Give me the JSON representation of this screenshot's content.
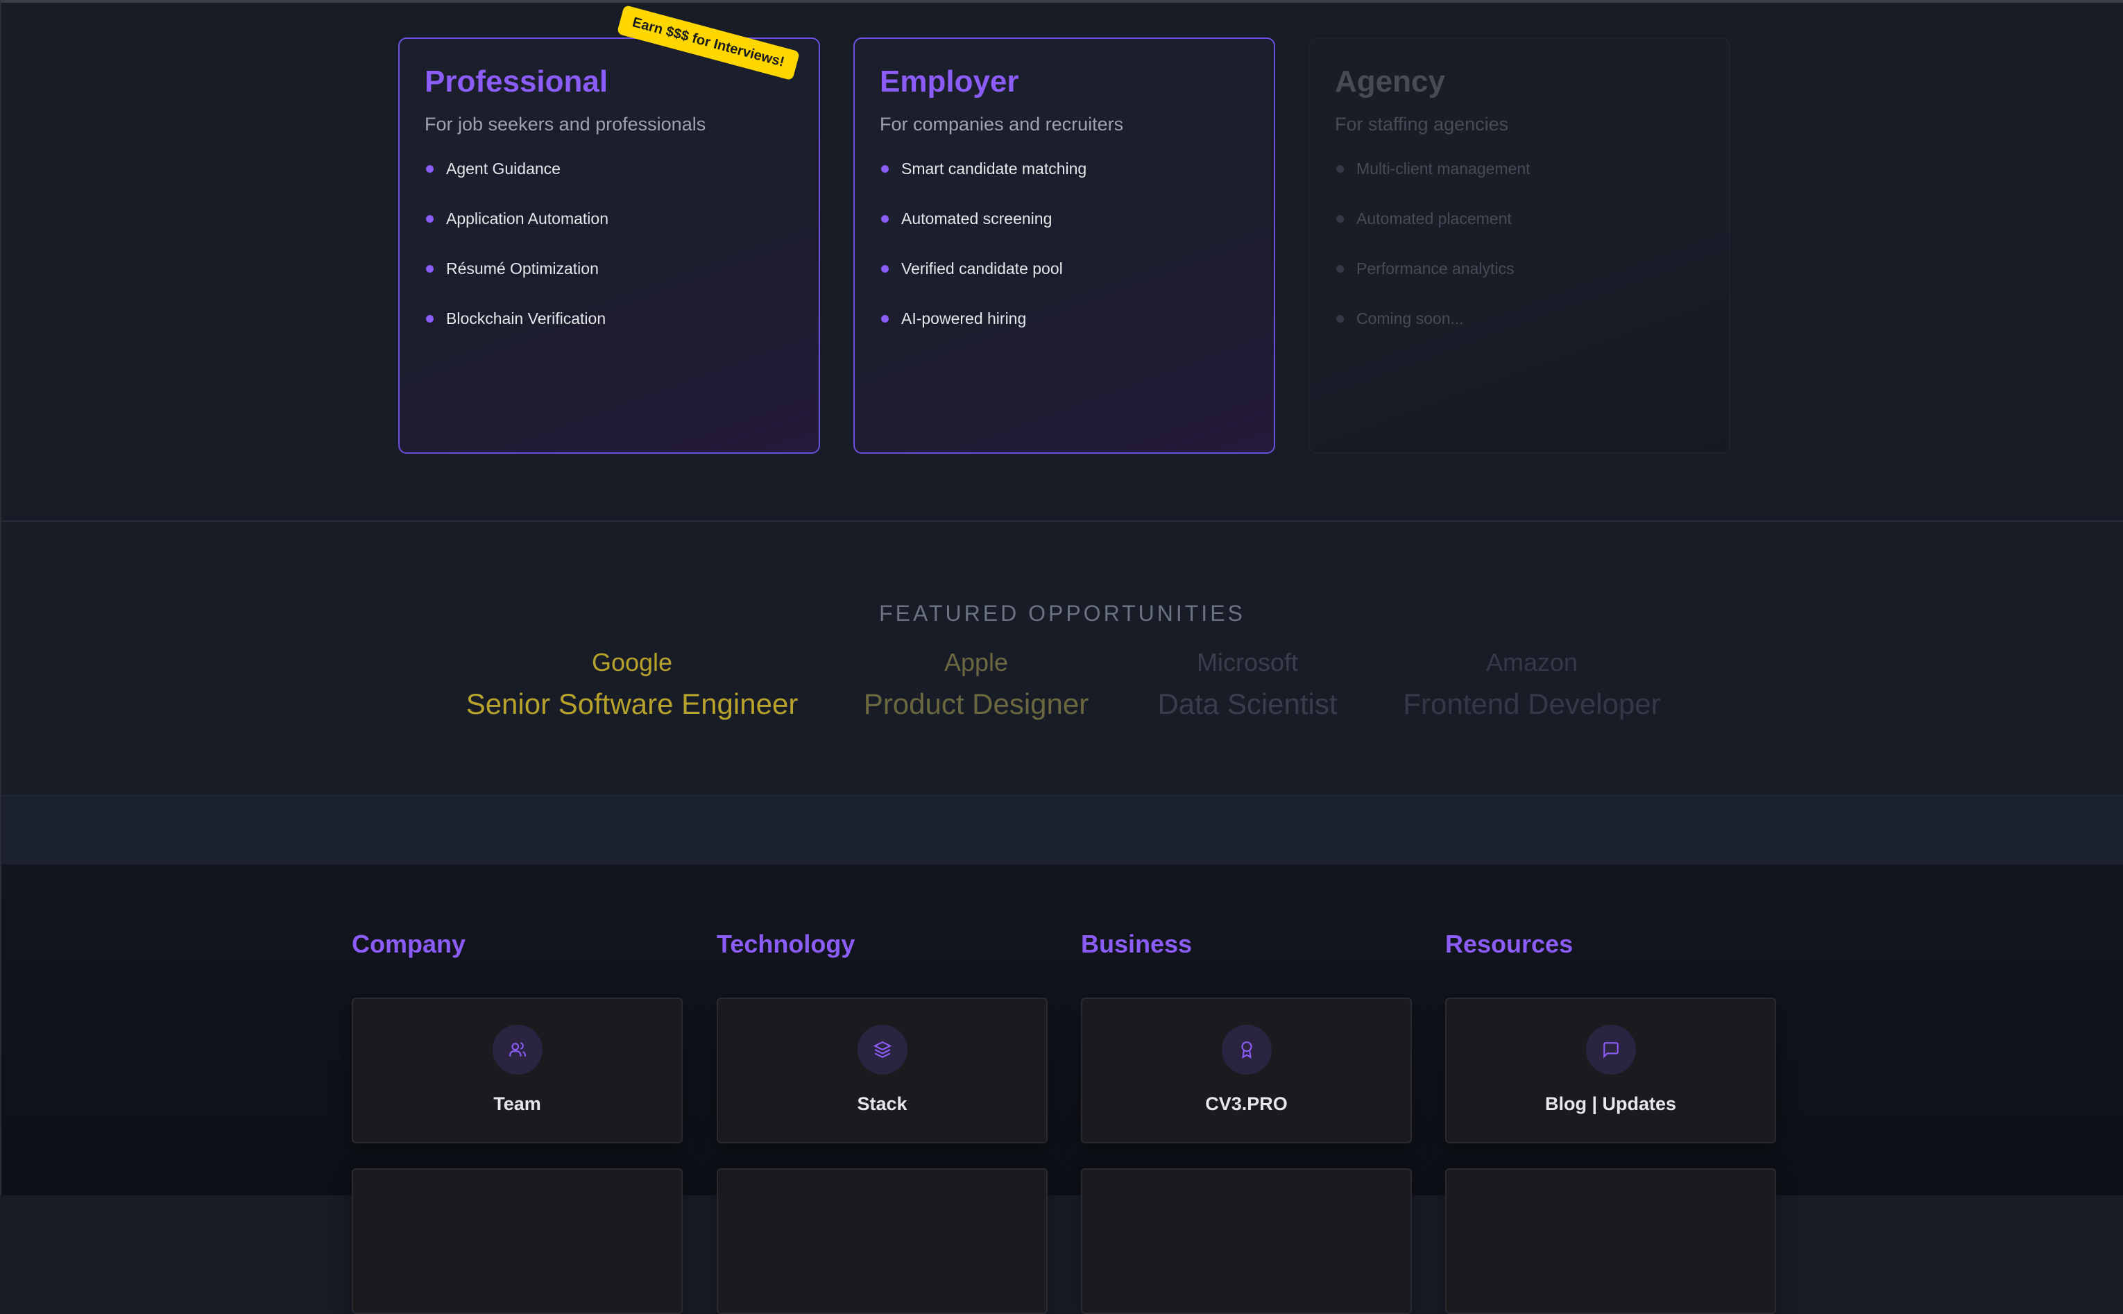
{
  "plans": [
    {
      "title": "Professional",
      "subtitle": "For job seekers and professionals",
      "features": [
        "Agent Guidance",
        "Application Automation",
        "Résumé Optimization",
        "Blockchain Verification"
      ],
      "badge": "Earn $$$ for Interviews!"
    },
    {
      "title": "Employer",
      "subtitle": "For companies and recruiters",
      "features": [
        "Smart candidate matching",
        "Automated screening",
        "Verified candidate pool",
        "AI-powered hiring"
      ]
    },
    {
      "title": "Agency",
      "subtitle": "For staffing agencies",
      "features": [
        "Multi-client management",
        "Automated placement",
        "Performance analytics",
        "Coming soon..."
      ]
    }
  ],
  "featured": {
    "title": "FEATURED OPPORTUNITIES",
    "items": [
      {
        "company": "Google",
        "role": "Senior Software Engineer",
        "color": "#b7a22c"
      },
      {
        "company": "Apple",
        "role": "Product Designer",
        "color": "#6b6840"
      },
      {
        "company": "Microsoft",
        "role": "Data Scientist",
        "color": "#3a3e4a"
      },
      {
        "company": "Amazon",
        "role": "Frontend Developer",
        "color": "#353946"
      }
    ]
  },
  "footer": {
    "columns": [
      {
        "heading": "Company",
        "card": "Team",
        "icon": "users-icon"
      },
      {
        "heading": "Technology",
        "card": "Stack",
        "icon": "layers-icon"
      },
      {
        "heading": "Business",
        "card": "CV3.PRO",
        "icon": "award-icon"
      },
      {
        "heading": "Resources",
        "card": "Blog | Updates",
        "icon": "message-square-icon"
      }
    ]
  },
  "colors": {
    "accent": "#8b5cf6",
    "badge": "#ffd700",
    "background": "#181c27"
  }
}
